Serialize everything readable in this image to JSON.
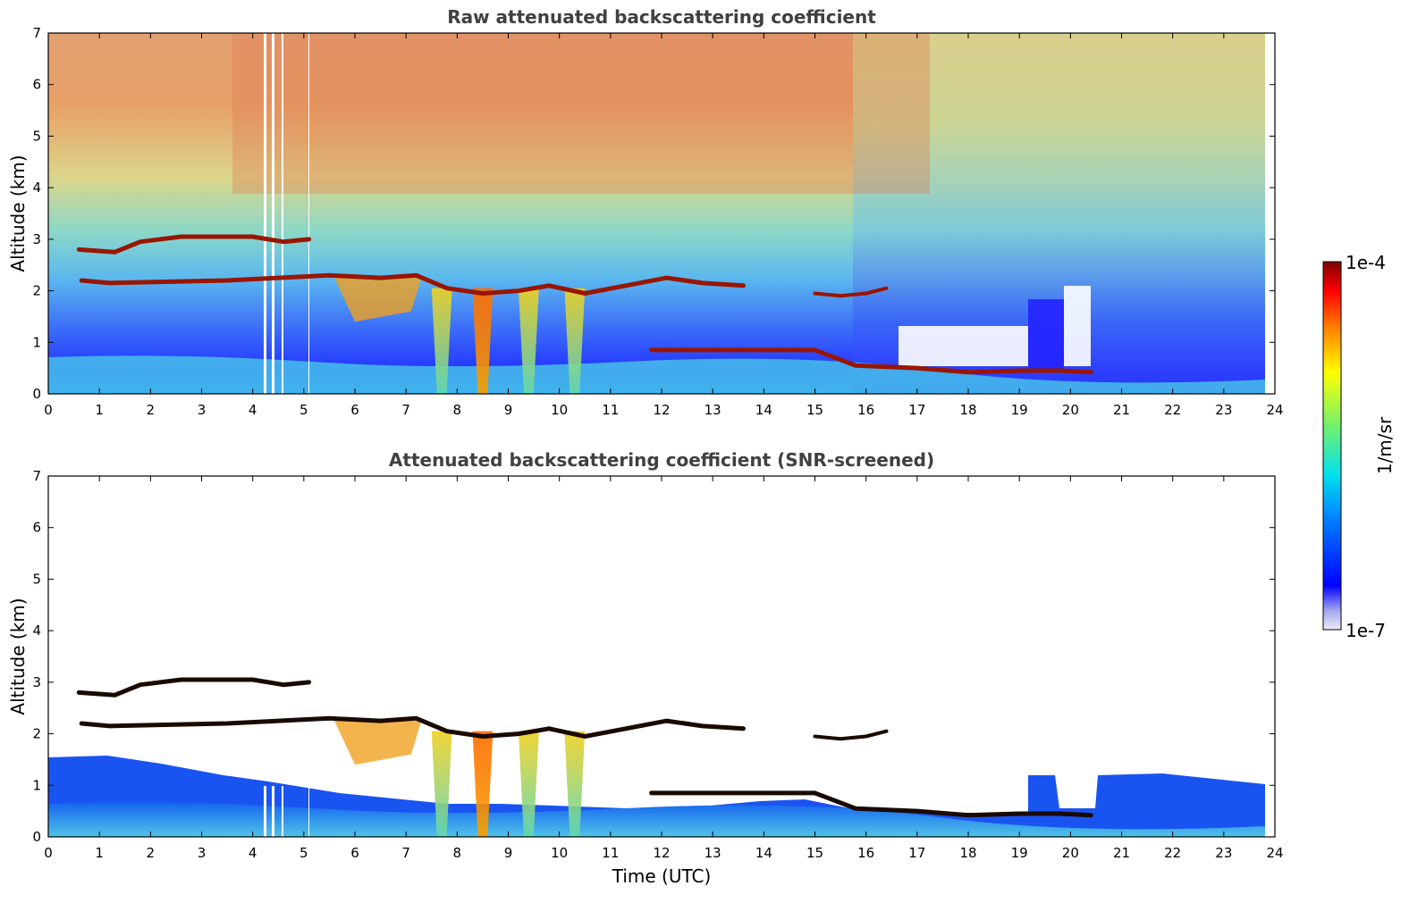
{
  "chart_data": [
    {
      "type": "heatmap",
      "title": "Raw attenuated backscattering coefficient",
      "xlabel": "",
      "ylabel": "Altitude (km)",
      "xlim": [
        0,
        24
      ],
      "ylim": [
        0,
        7
      ],
      "xticks": [
        "0",
        "1",
        "2",
        "3",
        "4",
        "5",
        "6",
        "7",
        "8",
        "9",
        "10",
        "11",
        "12",
        "13",
        "14",
        "15",
        "16",
        "17",
        "18",
        "19",
        "20",
        "21",
        "22",
        "23",
        "24"
      ],
      "yticks": [
        "0",
        "1",
        "2",
        "3",
        "4",
        "5",
        "6",
        "7"
      ],
      "colorscale": "jet",
      "features": {
        "upper_cloud_layer": [
          [
            0.6,
            2.8
          ],
          [
            1.3,
            2.75
          ],
          [
            1.8,
            2.95
          ],
          [
            2.6,
            3.05
          ],
          [
            3.3,
            3.05
          ],
          [
            4.0,
            3.05
          ],
          [
            4.6,
            2.95
          ],
          [
            5.1,
            3.0
          ]
        ],
        "middle_cloud_layer": [
          [
            0.65,
            2.2
          ],
          [
            1.2,
            2.15
          ],
          [
            3.5,
            2.2
          ],
          [
            4.5,
            2.25
          ],
          [
            5.5,
            2.3
          ],
          [
            6.5,
            2.25
          ],
          [
            7.2,
            2.3
          ],
          [
            7.8,
            2.05
          ],
          [
            8.5,
            1.95
          ],
          [
            9.2,
            2.0
          ],
          [
            9.8,
            2.1
          ],
          [
            10.5,
            1.95
          ],
          [
            11.3,
            2.1
          ],
          [
            12.1,
            2.25
          ],
          [
            12.8,
            2.15
          ],
          [
            13.6,
            2.1
          ]
        ],
        "broken_cloud_layer": [
          [
            15.0,
            1.95
          ],
          [
            15.5,
            1.9
          ],
          [
            16.0,
            1.95
          ],
          [
            16.4,
            2.05
          ]
        ],
        "low_cloud_layer": [
          [
            11.8,
            0.85
          ],
          [
            13.5,
            0.85
          ],
          [
            14.5,
            0.85
          ],
          [
            15.0,
            0.85
          ],
          [
            15.8,
            0.55
          ],
          [
            17.0,
            0.5
          ],
          [
            18.0,
            0.42
          ],
          [
            19.0,
            0.45
          ],
          [
            19.8,
            0.45
          ],
          [
            20.4,
            0.42
          ]
        ],
        "precipitation_streaks": [
          [
            7.5,
            7.9
          ],
          [
            8.3,
            8.7
          ],
          [
            9.2,
            9.6
          ],
          [
            10.1,
            10.5
          ]
        ]
      }
    },
    {
      "type": "heatmap",
      "title": "Attenuated backscattering coefficient (SNR-screened)",
      "xlabel": "Time (UTC)",
      "ylabel": "Altitude (km)",
      "xlim": [
        0,
        24
      ],
      "ylim": [
        0,
        7
      ],
      "xticks": [
        "0",
        "1",
        "2",
        "3",
        "4",
        "5",
        "6",
        "7",
        "8",
        "9",
        "10",
        "11",
        "12",
        "13",
        "14",
        "15",
        "16",
        "17",
        "18",
        "19",
        "20",
        "21",
        "22",
        "23",
        "24"
      ],
      "yticks": [
        "0",
        "1",
        "2",
        "3",
        "4",
        "5",
        "6",
        "7"
      ],
      "colorscale": "jet",
      "colorbar": {
        "min_label": "1e-7",
        "max_label": "1e-4",
        "unit": "1/m/sr"
      }
    }
  ]
}
